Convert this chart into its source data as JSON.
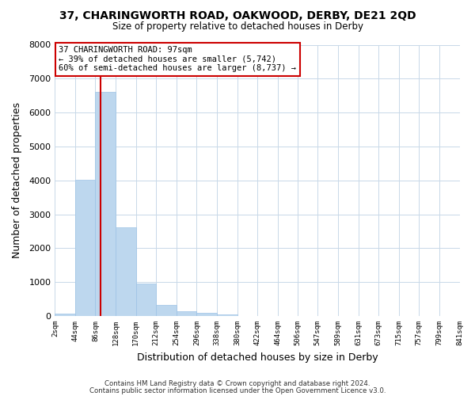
{
  "title": "37, CHARINGWORTH ROAD, OAKWOOD, DERBY, DE21 2QD",
  "subtitle": "Size of property relative to detached houses in Derby",
  "xlabel": "Distribution of detached houses by size in Derby",
  "ylabel": "Number of detached properties",
  "bin_edges": [
    2,
    44,
    86,
    128,
    170,
    212,
    254,
    296,
    338,
    380,
    422,
    464,
    506,
    547,
    589,
    631,
    673,
    715,
    757,
    799,
    841
  ],
  "bin_counts": [
    70,
    4020,
    6600,
    2620,
    960,
    320,
    150,
    100,
    50,
    0,
    0,
    0,
    0,
    0,
    0,
    0,
    0,
    0,
    0,
    0
  ],
  "bar_color": "#bdd7ee",
  "bar_edge_color": "#9dc3e6",
  "property_size": 97,
  "property_line_color": "#cc0000",
  "annotation_title": "37 CHARINGWORTH ROAD: 97sqm",
  "annotation_line1": "← 39% of detached houses are smaller (5,742)",
  "annotation_line2": "60% of semi-detached houses are larger (8,737) →",
  "annotation_box_color": "#ffffff",
  "annotation_box_edgecolor": "#cc0000",
  "ylim": [
    0,
    8000
  ],
  "yticks": [
    0,
    1000,
    2000,
    3000,
    4000,
    5000,
    6000,
    7000,
    8000
  ],
  "ytick_labels": [
    "0",
    "1000",
    "2000",
    "3000",
    "4000",
    "5000",
    "6000",
    "7000",
    "8000"
  ],
  "tick_labels": [
    "2sqm",
    "44sqm",
    "86sqm",
    "128sqm",
    "170sqm",
    "212sqm",
    "254sqm",
    "296sqm",
    "338sqm",
    "380sqm",
    "422sqm",
    "464sqm",
    "506sqm",
    "547sqm",
    "589sqm",
    "631sqm",
    "673sqm",
    "715sqm",
    "757sqm",
    "799sqm",
    "841sqm"
  ],
  "footer1": "Contains HM Land Registry data © Crown copyright and database right 2024.",
  "footer2": "Contains public sector information licensed under the Open Government Licence v3.0.",
  "background_color": "#ffffff",
  "grid_color": "#c8d8e8"
}
